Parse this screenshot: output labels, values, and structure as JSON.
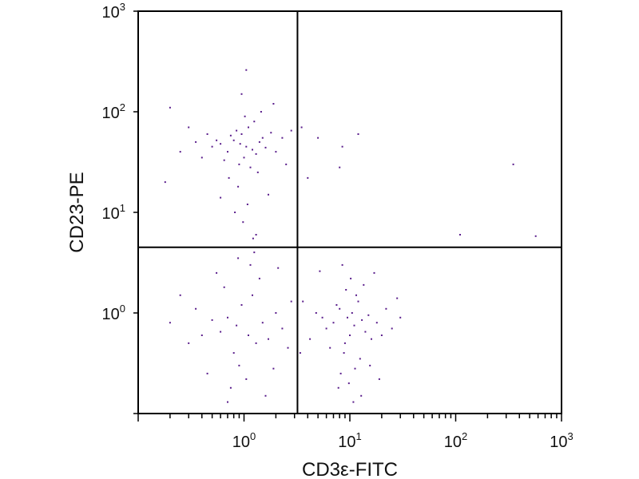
{
  "chart_data": {
    "type": "scatter",
    "title": "",
    "xlabel": "CD3ε-FITC",
    "ylabel": "CD23-PE",
    "x_scale": "log",
    "y_scale": "log",
    "xlim": [
      0.1,
      1000
    ],
    "ylim": [
      0.1,
      1000
    ],
    "grid": false,
    "point_color": "#5a1e8c",
    "axis_color": "#000000",
    "x_ticks": [
      {
        "base": "10",
        "exp": "0",
        "value": 1
      },
      {
        "base": "10",
        "exp": "1",
        "value": 10
      },
      {
        "base": "10",
        "exp": "2",
        "value": 100
      },
      {
        "base": "10",
        "exp": "3",
        "value": 1000
      }
    ],
    "y_ticks": [
      {
        "base": "10",
        "exp": "0",
        "value": 1
      },
      {
        "base": "10",
        "exp": "1",
        "value": 10
      },
      {
        "base": "10",
        "exp": "2",
        "value": 100
      },
      {
        "base": "10",
        "exp": "3",
        "value": 1000
      }
    ],
    "quadrant_gates": {
      "x": 3.2,
      "y": 4.5
    },
    "series": [
      {
        "values": [
          [
            1.05,
            45
          ],
          [
            0.8,
            52
          ],
          [
            1.3,
            38
          ],
          [
            0.95,
            60
          ],
          [
            0.7,
            40
          ],
          [
            1.1,
            70
          ],
          [
            0.9,
            30
          ],
          [
            1.5,
            55
          ],
          [
            0.6,
            48
          ],
          [
            1.2,
            42
          ],
          [
            0.85,
            65
          ],
          [
            1.0,
            35
          ],
          [
            1.4,
            50
          ],
          [
            0.75,
            58
          ],
          [
            1.25,
            80
          ],
          [
            0.65,
            33
          ],
          [
            1.6,
            44
          ],
          [
            0.55,
            52
          ],
          [
            1.15,
            28
          ],
          [
            0.92,
            48
          ],
          [
            1.8,
            62
          ],
          [
            0.5,
            45
          ],
          [
            1.35,
            25
          ],
          [
            1.02,
            90
          ],
          [
            0.72,
            22
          ],
          [
            2.0,
            40
          ],
          [
            0.45,
            60
          ],
          [
            1.45,
            100
          ],
          [
            0.88,
            18
          ],
          [
            2.3,
            55
          ],
          [
            0.4,
            35
          ],
          [
            1.7,
            15
          ],
          [
            1.08,
            12
          ],
          [
            0.98,
            8
          ],
          [
            1.3,
            6
          ],
          [
            0.82,
            10
          ],
          [
            1.22,
            5.5
          ],
          [
            2.5,
            30
          ],
          [
            0.35,
            50
          ],
          [
            0.3,
            70
          ],
          [
            0.25,
            40
          ],
          [
            2.8,
            65
          ],
          [
            0.2,
            110
          ],
          [
            0.18,
            20
          ],
          [
            1.9,
            120
          ],
          [
            0.95,
            150
          ],
          [
            1.05,
            260
          ],
          [
            0.6,
            14
          ],
          [
            3.5,
            70
          ],
          [
            5.0,
            55
          ],
          [
            8.5,
            45
          ],
          [
            12,
            60
          ],
          [
            8,
            28
          ],
          [
            4,
            22
          ],
          [
            9.5,
            0.9
          ],
          [
            11,
            0.75
          ],
          [
            8,
            1.1
          ],
          [
            13,
            0.85
          ],
          [
            10,
            0.6
          ],
          [
            7,
            0.8
          ],
          [
            12,
            1.3
          ],
          [
            9,
            0.5
          ],
          [
            15,
            0.95
          ],
          [
            6,
            0.7
          ],
          [
            11.5,
            1.5
          ],
          [
            8.8,
            0.4
          ],
          [
            14,
            0.65
          ],
          [
            10.5,
            1.0
          ],
          [
            7.5,
            1.2
          ],
          [
            16,
            0.55
          ],
          [
            5.5,
            0.9
          ],
          [
            12.5,
            0.35
          ],
          [
            9.2,
            1.7
          ],
          [
            18,
            0.8
          ],
          [
            6.5,
            0.45
          ],
          [
            11.2,
            0.28
          ],
          [
            13.5,
            1.9
          ],
          [
            4.8,
            1.0
          ],
          [
            20,
            0.6
          ],
          [
            8.2,
            0.25
          ],
          [
            10.2,
            2.2
          ],
          [
            22,
            1.1
          ],
          [
            4.2,
            0.55
          ],
          [
            25,
            0.7
          ],
          [
            9.8,
            0.2
          ],
          [
            15.5,
            0.3
          ],
          [
            3.6,
            1.3
          ],
          [
            17,
            2.5
          ],
          [
            7.8,
            0.18
          ],
          [
            28,
            1.4
          ],
          [
            12.8,
            0.15
          ],
          [
            5.2,
            2.6
          ],
          [
            10.8,
            0.13
          ],
          [
            30,
            0.9
          ],
          [
            3.4,
            0.4
          ],
          [
            19,
            0.22
          ],
          [
            8.5,
            3.0
          ],
          [
            0.85,
            0.75
          ],
          [
            1.1,
            0.6
          ],
          [
            0.7,
            0.9
          ],
          [
            1.3,
            0.5
          ],
          [
            0.95,
            1.2
          ],
          [
            0.6,
            0.65
          ],
          [
            1.5,
            0.8
          ],
          [
            0.8,
            0.4
          ],
          [
            1.2,
            1.5
          ],
          [
            0.5,
            0.85
          ],
          [
            1.7,
            0.55
          ],
          [
            0.9,
            0.3
          ],
          [
            0.4,
            0.6
          ],
          [
            2.0,
            1.0
          ],
          [
            1.05,
            0.22
          ],
          [
            0.65,
            1.8
          ],
          [
            2.3,
            0.7
          ],
          [
            0.35,
            1.1
          ],
          [
            1.4,
            2.2
          ],
          [
            0.75,
            0.18
          ],
          [
            2.6,
            0.45
          ],
          [
            0.3,
            0.5
          ],
          [
            1.9,
            0.28
          ],
          [
            0.55,
            2.5
          ],
          [
            0.2,
            0.8
          ],
          [
            1.15,
            3.0
          ],
          [
            2.8,
            1.3
          ],
          [
            0.45,
            0.25
          ],
          [
            1.6,
            0.15
          ],
          [
            0.25,
            1.5
          ],
          [
            0.88,
            3.5
          ],
          [
            2.1,
            2.8
          ],
          [
            0.7,
            0.13
          ],
          [
            1.25,
            4.0
          ],
          [
            570,
            5.8
          ],
          [
            110,
            6.0
          ],
          [
            350,
            30
          ]
        ]
      }
    ]
  }
}
